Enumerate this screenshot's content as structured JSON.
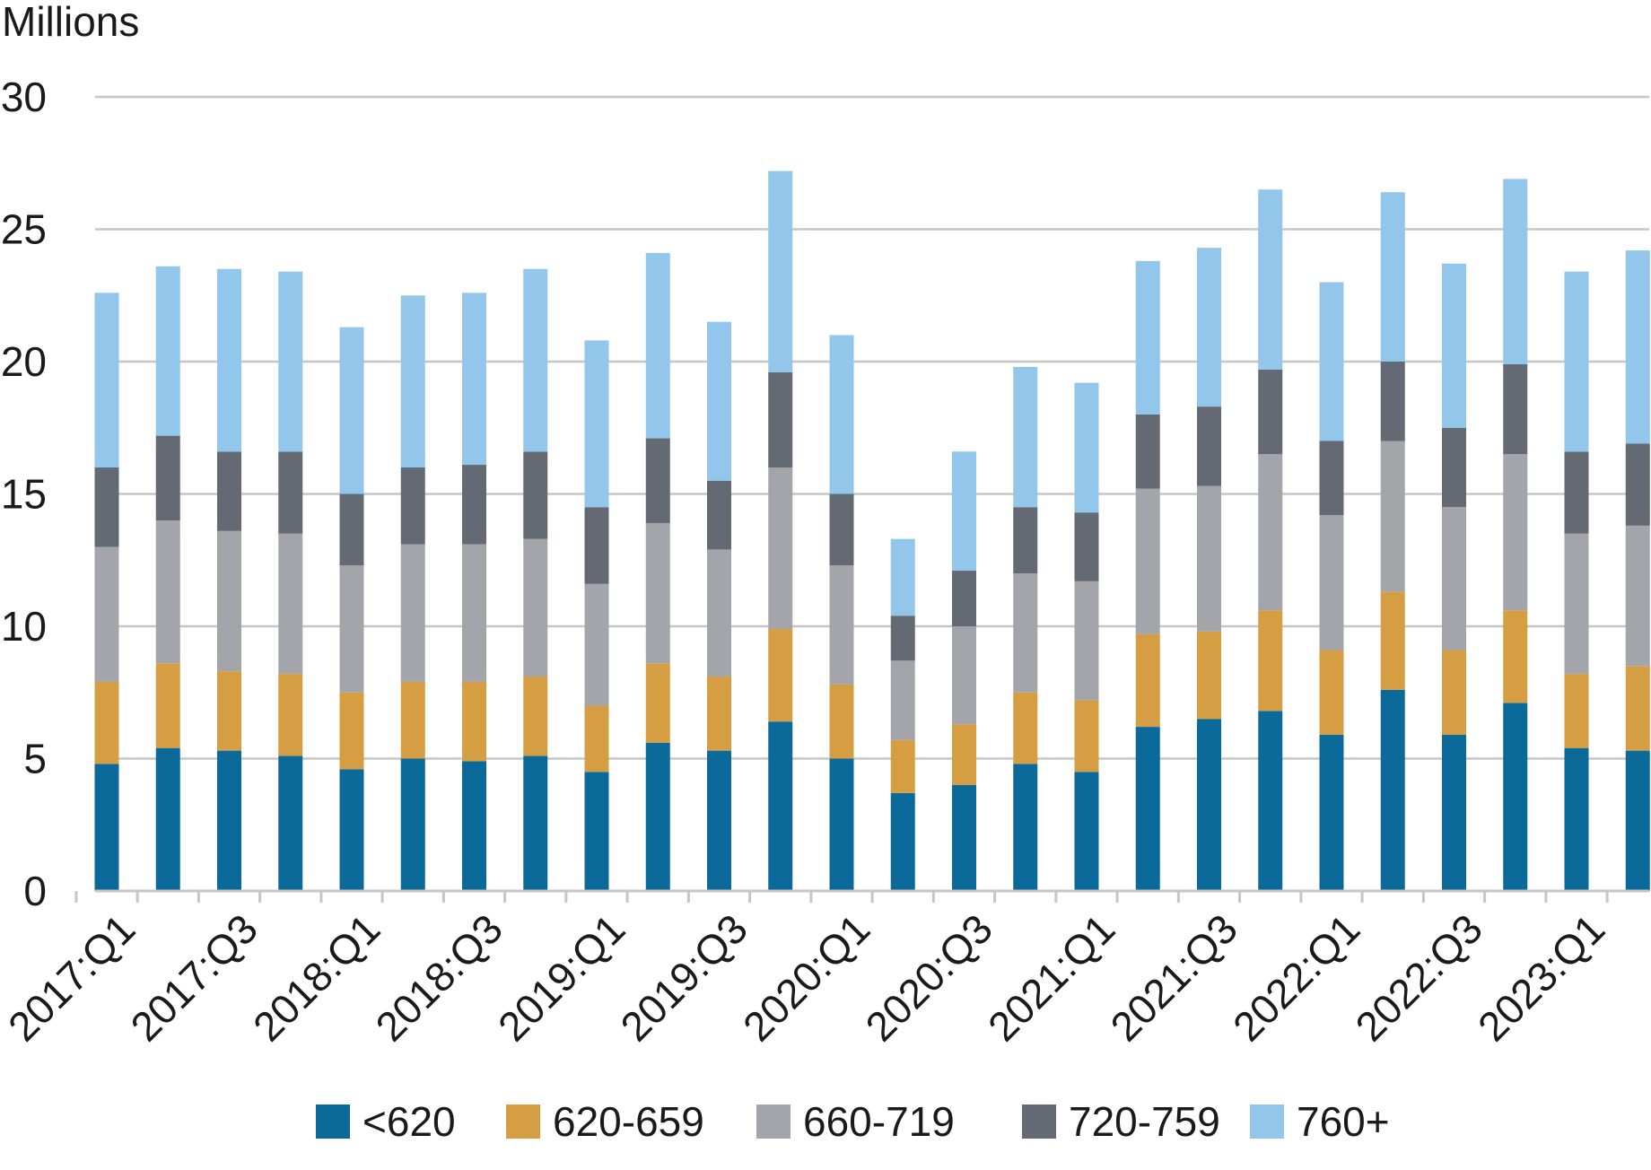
{
  "chart_data": {
    "type": "bar",
    "stacked": true,
    "y_unit_label": "Millions",
    "ylim": [
      0,
      30
    ],
    "yticks": [
      0,
      5,
      10,
      15,
      20,
      25,
      30
    ],
    "grid": true,
    "legend_position": "bottom",
    "categories": [
      "2017:Q1",
      "2017:Q2",
      "2017:Q3",
      "2017:Q4",
      "2018:Q1",
      "2018:Q2",
      "2018:Q3",
      "2018:Q4",
      "2019:Q1",
      "2019:Q2",
      "2019:Q3",
      "2019:Q4",
      "2020:Q1",
      "2020:Q2",
      "2020:Q3",
      "2020:Q4",
      "2021:Q1",
      "2021:Q2",
      "2021:Q3",
      "2021:Q4",
      "2022:Q1",
      "2022:Q2",
      "2022:Q3",
      "2022:Q4",
      "2023:Q1",
      "2023:Q2"
    ],
    "x_tick_labels": [
      "2017:Q1",
      "2017:Q3",
      "2018:Q1",
      "2018:Q3",
      "2019:Q1",
      "2019:Q3",
      "2020:Q1",
      "2020:Q3",
      "2021:Q1",
      "2021:Q3",
      "2022:Q1",
      "2022:Q3",
      "2023:Q1"
    ],
    "series": [
      {
        "name": "<620",
        "color": "#0b6a9a",
        "values": [
          4.8,
          5.4,
          5.3,
          5.1,
          4.6,
          5.0,
          4.9,
          5.1,
          4.5,
          5.6,
          5.3,
          6.4,
          5.0,
          3.7,
          4.0,
          4.8,
          4.5,
          6.2,
          6.5,
          6.8,
          5.9,
          7.6,
          5.9,
          7.1,
          5.4,
          5.3
        ]
      },
      {
        "name": "620-659",
        "color": "#d69e42",
        "values": [
          3.1,
          3.2,
          3.0,
          3.1,
          2.9,
          2.9,
          3.0,
          3.0,
          2.5,
          3.0,
          2.8,
          3.5,
          2.8,
          2.0,
          2.3,
          2.7,
          2.7,
          3.5,
          3.3,
          3.8,
          3.2,
          3.7,
          3.2,
          3.5,
          2.8,
          3.2
        ]
      },
      {
        "name": "660-719",
        "color": "#a3a5aa",
        "values": [
          5.1,
          5.4,
          5.3,
          5.3,
          4.8,
          5.2,
          5.2,
          5.2,
          4.6,
          5.3,
          4.8,
          6.1,
          4.5,
          3.0,
          3.7,
          4.5,
          4.5,
          5.5,
          5.5,
          5.9,
          5.1,
          5.7,
          5.4,
          5.9,
          5.3,
          5.3
        ]
      },
      {
        "name": "720-759",
        "color": "#646a74",
        "values": [
          3.0,
          3.2,
          3.0,
          3.1,
          2.7,
          2.9,
          3.0,
          3.3,
          2.9,
          3.2,
          2.6,
          3.6,
          2.7,
          1.7,
          2.1,
          2.5,
          2.6,
          2.8,
          3.0,
          3.2,
          2.8,
          3.0,
          3.0,
          3.4,
          3.1,
          3.1
        ]
      },
      {
        "name": "760+",
        "color": "#92c6ea",
        "values": [
          6.6,
          6.4,
          6.9,
          6.8,
          6.3,
          6.5,
          6.5,
          6.9,
          6.3,
          7.0,
          6.0,
          7.6,
          6.0,
          2.9,
          4.5,
          5.3,
          4.9,
          5.8,
          6.0,
          6.8,
          6.0,
          6.4,
          6.2,
          7.0,
          6.8,
          7.3
        ]
      }
    ]
  }
}
